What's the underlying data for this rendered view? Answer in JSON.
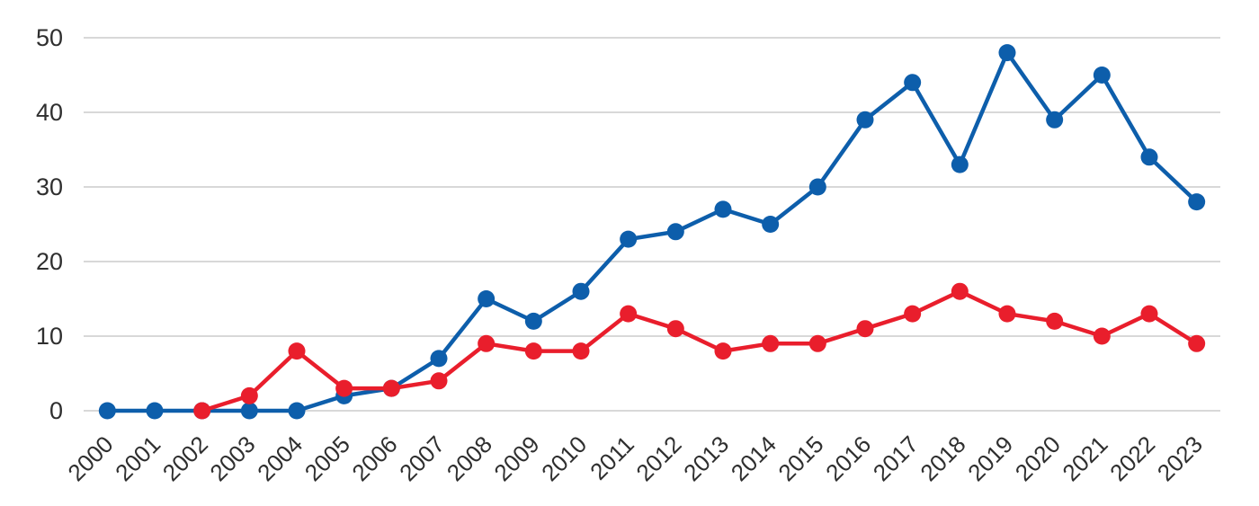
{
  "page": {
    "background_color": "#ffffff"
  },
  "chart_data": {
    "type": "line",
    "title": "",
    "xlabel": "",
    "ylabel": "",
    "x": [
      "2000",
      "2001",
      "2002",
      "2003",
      "2004",
      "2005",
      "2006",
      "2007",
      "2008",
      "2009",
      "2010",
      "2011",
      "2012",
      "2013",
      "2014",
      "2015",
      "2016",
      "2017",
      "2018",
      "2019",
      "2020",
      "2021",
      "2022",
      "2023"
    ],
    "series": [
      {
        "name": "blue-series",
        "color": "#0d5eab",
        "values": [
          0,
          0,
          0,
          0,
          0,
          2,
          3,
          7,
          15,
          12,
          16,
          23,
          24,
          27,
          25,
          30,
          39,
          44,
          33,
          48,
          39,
          45,
          34,
          28
        ]
      },
      {
        "name": "red-series",
        "color": "#e91e2c",
        "values": [
          null,
          null,
          0,
          2,
          8,
          3,
          3,
          4,
          9,
          8,
          8,
          13,
          11,
          8,
          9,
          9,
          11,
          13,
          16,
          13,
          12,
          10,
          13,
          9
        ]
      }
    ],
    "ylim": [
      0,
      50
    ],
    "yticks": [
      0,
      10,
      20,
      30,
      40,
      50
    ],
    "grid": true,
    "gridline_color": "#cccccc",
    "tick_label_color": "#2f2f2f",
    "legend": "none",
    "x_labels_rotated": true
  }
}
